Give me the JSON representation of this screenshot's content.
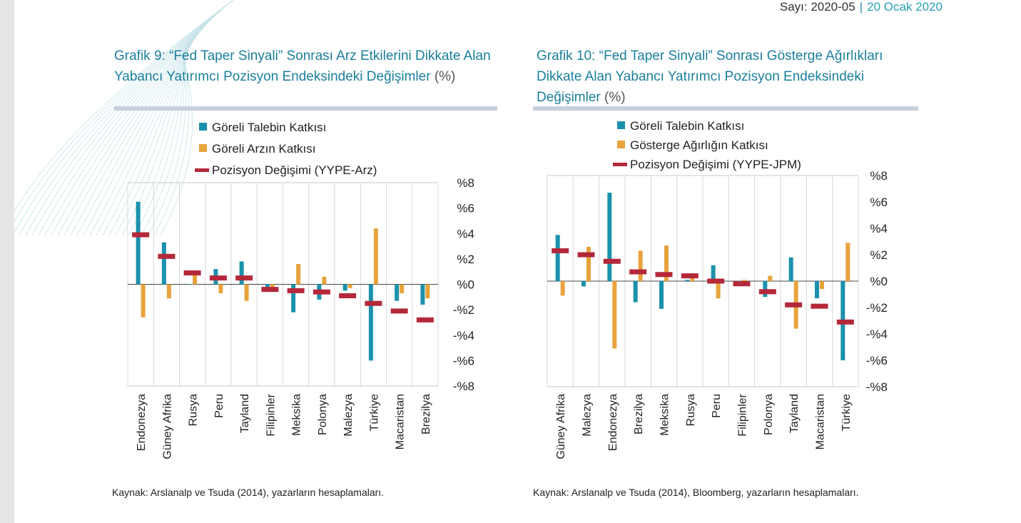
{
  "header": {
    "issue": "Sayı: 2020-05",
    "separator": "|",
    "date": "20 Ocak 2020"
  },
  "colors": {
    "talep": "#1b91ad",
    "arz": "#e8a33c",
    "pozisyon": "#b4283a",
    "title": "#1b7f9c",
    "bar": "#c7d0da"
  },
  "chart1": {
    "title_main": "Grafik 9: “Fed Taper Sinyali” Sonrası Arz Etkilerini Dikkate Alan Yabancı Yatırımcı Pozisyon Endeksindeki Değişimler ",
    "title_unit": "(%)",
    "source": "Kaynak: Arslanalp ve Tsuda (2014), yazarların hesaplamaları."
  },
  "chart2": {
    "title_main": "Grafik 10: “Fed Taper Sinyali” Sonrası Gösterge Ağırlıkları Dikkate Alan Yabancı Yatırımcı Pozisyon Endeksindeki Değişimler ",
    "title_unit": "(%)",
    "source": "Kaynak: Arslanalp ve Tsuda (2014), Bloomberg, yazarların hesaplamaları."
  },
  "chart_data": [
    {
      "type": "bar",
      "categories": [
        "Endonezya",
        "Güney Afrika",
        "Rusya",
        "Peru",
        "Tayland",
        "Filipinler",
        "Meksika",
        "Polonya",
        "Malezya",
        "Türkiye",
        "Macaristan",
        "Brezilya"
      ],
      "series": [
        {
          "name": "Göreli Talebin Katkısı",
          "kind": "bar",
          "color": "#1b91ad",
          "values": [
            6.5,
            3.3,
            0.0,
            1.2,
            1.8,
            -0.3,
            -2.2,
            -1.2,
            -0.5,
            -6.0,
            -1.3,
            -1.6
          ]
        },
        {
          "name": "Göreli Arzın Katkısı",
          "kind": "bar",
          "color": "#e8a33c",
          "values": [
            -2.6,
            -1.1,
            0.9,
            -0.7,
            -1.3,
            -0.3,
            1.6,
            0.6,
            -0.3,
            4.4,
            -0.7,
            -1.1
          ]
        },
        {
          "name": "Pozisyon Değişimi (YYPE-Arz)",
          "kind": "marker",
          "color": "#b4283a",
          "values": [
            3.9,
            2.2,
            0.9,
            0.5,
            0.5,
            -0.4,
            -0.5,
            -0.6,
            -0.9,
            -1.5,
            -2.1,
            -2.8
          ]
        }
      ],
      "yticks": [
        "%8",
        "%6",
        "%4",
        "%2",
        "%0",
        "-%2",
        "-%4",
        "-%6",
        "-%8"
      ],
      "ylim": [
        -8,
        8
      ],
      "legend": "top"
    },
    {
      "type": "bar",
      "categories": [
        "Güney Afrika",
        "Malezya",
        "Endonezya",
        "Brezilya",
        "Meksika",
        "Rusya",
        "Peru",
        "Filipinler",
        "Polonya",
        "Tayland",
        "Macaristan",
        "Türkiye"
      ],
      "series": [
        {
          "name": "Göreli Talebin Katkısı",
          "kind": "bar",
          "color": "#1b91ad",
          "values": [
            3.5,
            -0.4,
            6.7,
            -1.6,
            -2.1,
            0.1,
            1.2,
            -0.2,
            -1.2,
            1.8,
            -1.3,
            -6.0
          ]
        },
        {
          "name": "Gösterge Ağırlığın Katkısı",
          "kind": "bar",
          "color": "#e8a33c",
          "values": [
            -1.1,
            2.6,
            -5.1,
            2.3,
            2.7,
            0.3,
            -1.3,
            0.1,
            0.4,
            -3.6,
            -0.6,
            2.9
          ]
        },
        {
          "name": "Pozisyon Değişimi (YYPE-JPM)",
          "kind": "marker",
          "color": "#b4283a",
          "values": [
            2.3,
            2.0,
            1.5,
            0.7,
            0.5,
            0.4,
            0.0,
            -0.2,
            -0.8,
            -1.8,
            -1.9,
            -3.1
          ]
        }
      ],
      "yticks": [
        "%8",
        "%6",
        "%4",
        "%2",
        "%0",
        "-%2",
        "-%4",
        "-%6",
        "-%8"
      ],
      "ylim": [
        -8,
        8
      ],
      "legend": "top"
    }
  ]
}
